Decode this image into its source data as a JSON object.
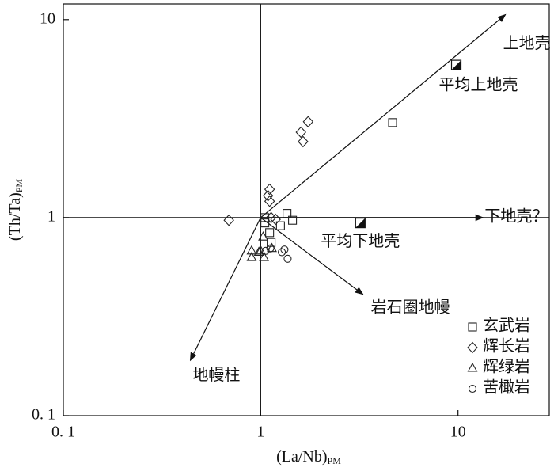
{
  "chart_data": {
    "type": "scatter",
    "xlabel": "(La/Nb)",
    "xlabel_sub": "PM",
    "ylabel": "(Th/Ta)",
    "ylabel_sub": "PM",
    "xscale": "log",
    "yscale": "log",
    "xlim": [
      0.1,
      29
    ],
    "ylim": [
      0.1,
      12
    ],
    "xticks": [
      {
        "value": 0.1,
        "label": "0. 1"
      },
      1,
      10
    ],
    "yticks": [
      {
        "value": 0.1,
        "label": "0. 1"
      },
      1,
      10
    ],
    "reference_lines": {
      "x": 1,
      "y": 1
    },
    "arrow_origin": {
      "x": 1,
      "y": 1
    },
    "arrows": [
      {
        "label": "上地壳",
        "x": 17.4,
        "y": 10.6
      },
      {
        "label": "下地壳？",
        "x": 13.4,
        "y": 1
      },
      {
        "label": "岩石圈地幔",
        "x": 3.3,
        "y": 0.41
      },
      {
        "label": "地幔柱",
        "x": 0.44,
        "y": 0.19
      }
    ],
    "reference_points": [
      {
        "label": "平均上地壳",
        "x": 9.8,
        "y": 5.9
      },
      {
        "label": "平均下地壳",
        "x": 3.2,
        "y": 0.94
      }
    ],
    "legend": "lower right",
    "series": [
      {
        "name": "玄武岩",
        "marker": "square",
        "color": "#222",
        "x": [
          4.66,
          1.05,
          1.11,
          1.13,
          1.26,
          1.36,
          1.45,
          1.05
        ],
        "y": [
          3.02,
          0.94,
          0.84,
          0.75,
          0.91,
          1.05,
          0.97,
          1.0
        ]
      },
      {
        "name": "辉长岩",
        "marker": "diamond",
        "color": "#222",
        "x": [
          1.74,
          1.6,
          1.64,
          1.11,
          1.09,
          1.11,
          0.69,
          1.13,
          1.19
        ],
        "y": [
          3.05,
          2.7,
          2.42,
          1.39,
          1.29,
          1.21,
          0.97,
          1.0,
          0.98
        ]
      },
      {
        "name": "辉绿岩",
        "marker": "triangle",
        "color": "#222",
        "x": [
          0.9,
          0.9,
          1.0,
          1.03,
          1.04,
          1.14,
          0.98
        ],
        "y": [
          0.68,
          0.63,
          0.68,
          0.8,
          0.63,
          0.7,
          0.67
        ]
      },
      {
        "name": "苦橄岩",
        "marker": "circle",
        "color": "#222",
        "x": [
          1.32,
          1.28,
          1.37,
          1.06,
          1.12
        ],
        "y": [
          0.69,
          0.67,
          0.62,
          0.68,
          0.7
        ]
      }
    ]
  }
}
